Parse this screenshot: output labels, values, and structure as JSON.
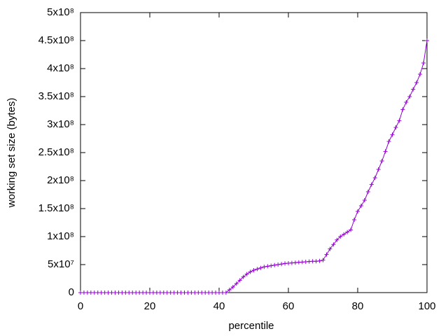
{
  "chart_data": {
    "type": "line",
    "xlabel": "percentile",
    "ylabel": "working set size (bytes)",
    "x": [
      0,
      1,
      2,
      3,
      4,
      5,
      6,
      7,
      8,
      9,
      10,
      11,
      12,
      13,
      14,
      15,
      16,
      17,
      18,
      19,
      20,
      21,
      22,
      23,
      24,
      25,
      26,
      27,
      28,
      29,
      30,
      31,
      32,
      33,
      34,
      35,
      36,
      37,
      38,
      39,
      40,
      41,
      42,
      43,
      44,
      45,
      46,
      47,
      48,
      49,
      50,
      51,
      52,
      53,
      54,
      55,
      56,
      57,
      58,
      59,
      60,
      61,
      62,
      63,
      64,
      65,
      66,
      67,
      68,
      69,
      70,
      71,
      72,
      73,
      74,
      75,
      76,
      77,
      78,
      79,
      80,
      81,
      82,
      83,
      84,
      85,
      86,
      87,
      88,
      89,
      90,
      91,
      92,
      93,
      94,
      95,
      96,
      97,
      98,
      99,
      100
    ],
    "series": [
      {
        "color": "#9400d3",
        "values": [
          0,
          0,
          0,
          0,
          0,
          0,
          0,
          0,
          0,
          0,
          0,
          0,
          0,
          0,
          0,
          0,
          0,
          0,
          0,
          0,
          0,
          0,
          0,
          0,
          0,
          0,
          0,
          0,
          0,
          0,
          0,
          0,
          0,
          0,
          0,
          0,
          0,
          0,
          0,
          0,
          0,
          0,
          0,
          5000000,
          10000000,
          16000000,
          22000000,
          28000000,
          33000000,
          37000000,
          40000000,
          42000000,
          44000000,
          46000000,
          47000000,
          48000000,
          49000000,
          50000000,
          51000000,
          52000000,
          52500000,
          53000000,
          53500000,
          54000000,
          54500000,
          55000000,
          55500000,
          56000000,
          56000000,
          56500000,
          58000000,
          68000000,
          78000000,
          86000000,
          94000000,
          100000000,
          104000000,
          108000000,
          112000000,
          130000000,
          145000000,
          155000000,
          165000000,
          180000000,
          193000000,
          205000000,
          220000000,
          235000000,
          252000000,
          270000000,
          282000000,
          295000000,
          307000000,
          327000000,
          340000000,
          350000000,
          363000000,
          375000000,
          390000000,
          410000000,
          450000000
        ]
      }
    ],
    "xlim": [
      0,
      100
    ],
    "xticks": [
      0,
      20,
      40,
      60,
      80,
      100
    ],
    "ylim": [
      0,
      500000000
    ],
    "yticks": [
      0,
      {
        "value": 50000000,
        "label": "5x10⁷"
      },
      {
        "value": 100000000,
        "label": "1x10⁸"
      },
      {
        "value": 150000000,
        "label": "1.5x10⁸"
      },
      {
        "value": 200000000,
        "label": "2x10⁸"
      },
      {
        "value": 250000000,
        "label": "2.5x10⁸"
      },
      {
        "value": 300000000,
        "label": "3x10⁸"
      },
      {
        "value": 350000000,
        "label": "3.5x10⁸"
      },
      {
        "value": 400000000,
        "label": "4x10⁸"
      },
      {
        "value": 450000000,
        "label": "4.5x10⁸"
      },
      {
        "value": 500000000,
        "label": "5x10⁸"
      }
    ]
  }
}
